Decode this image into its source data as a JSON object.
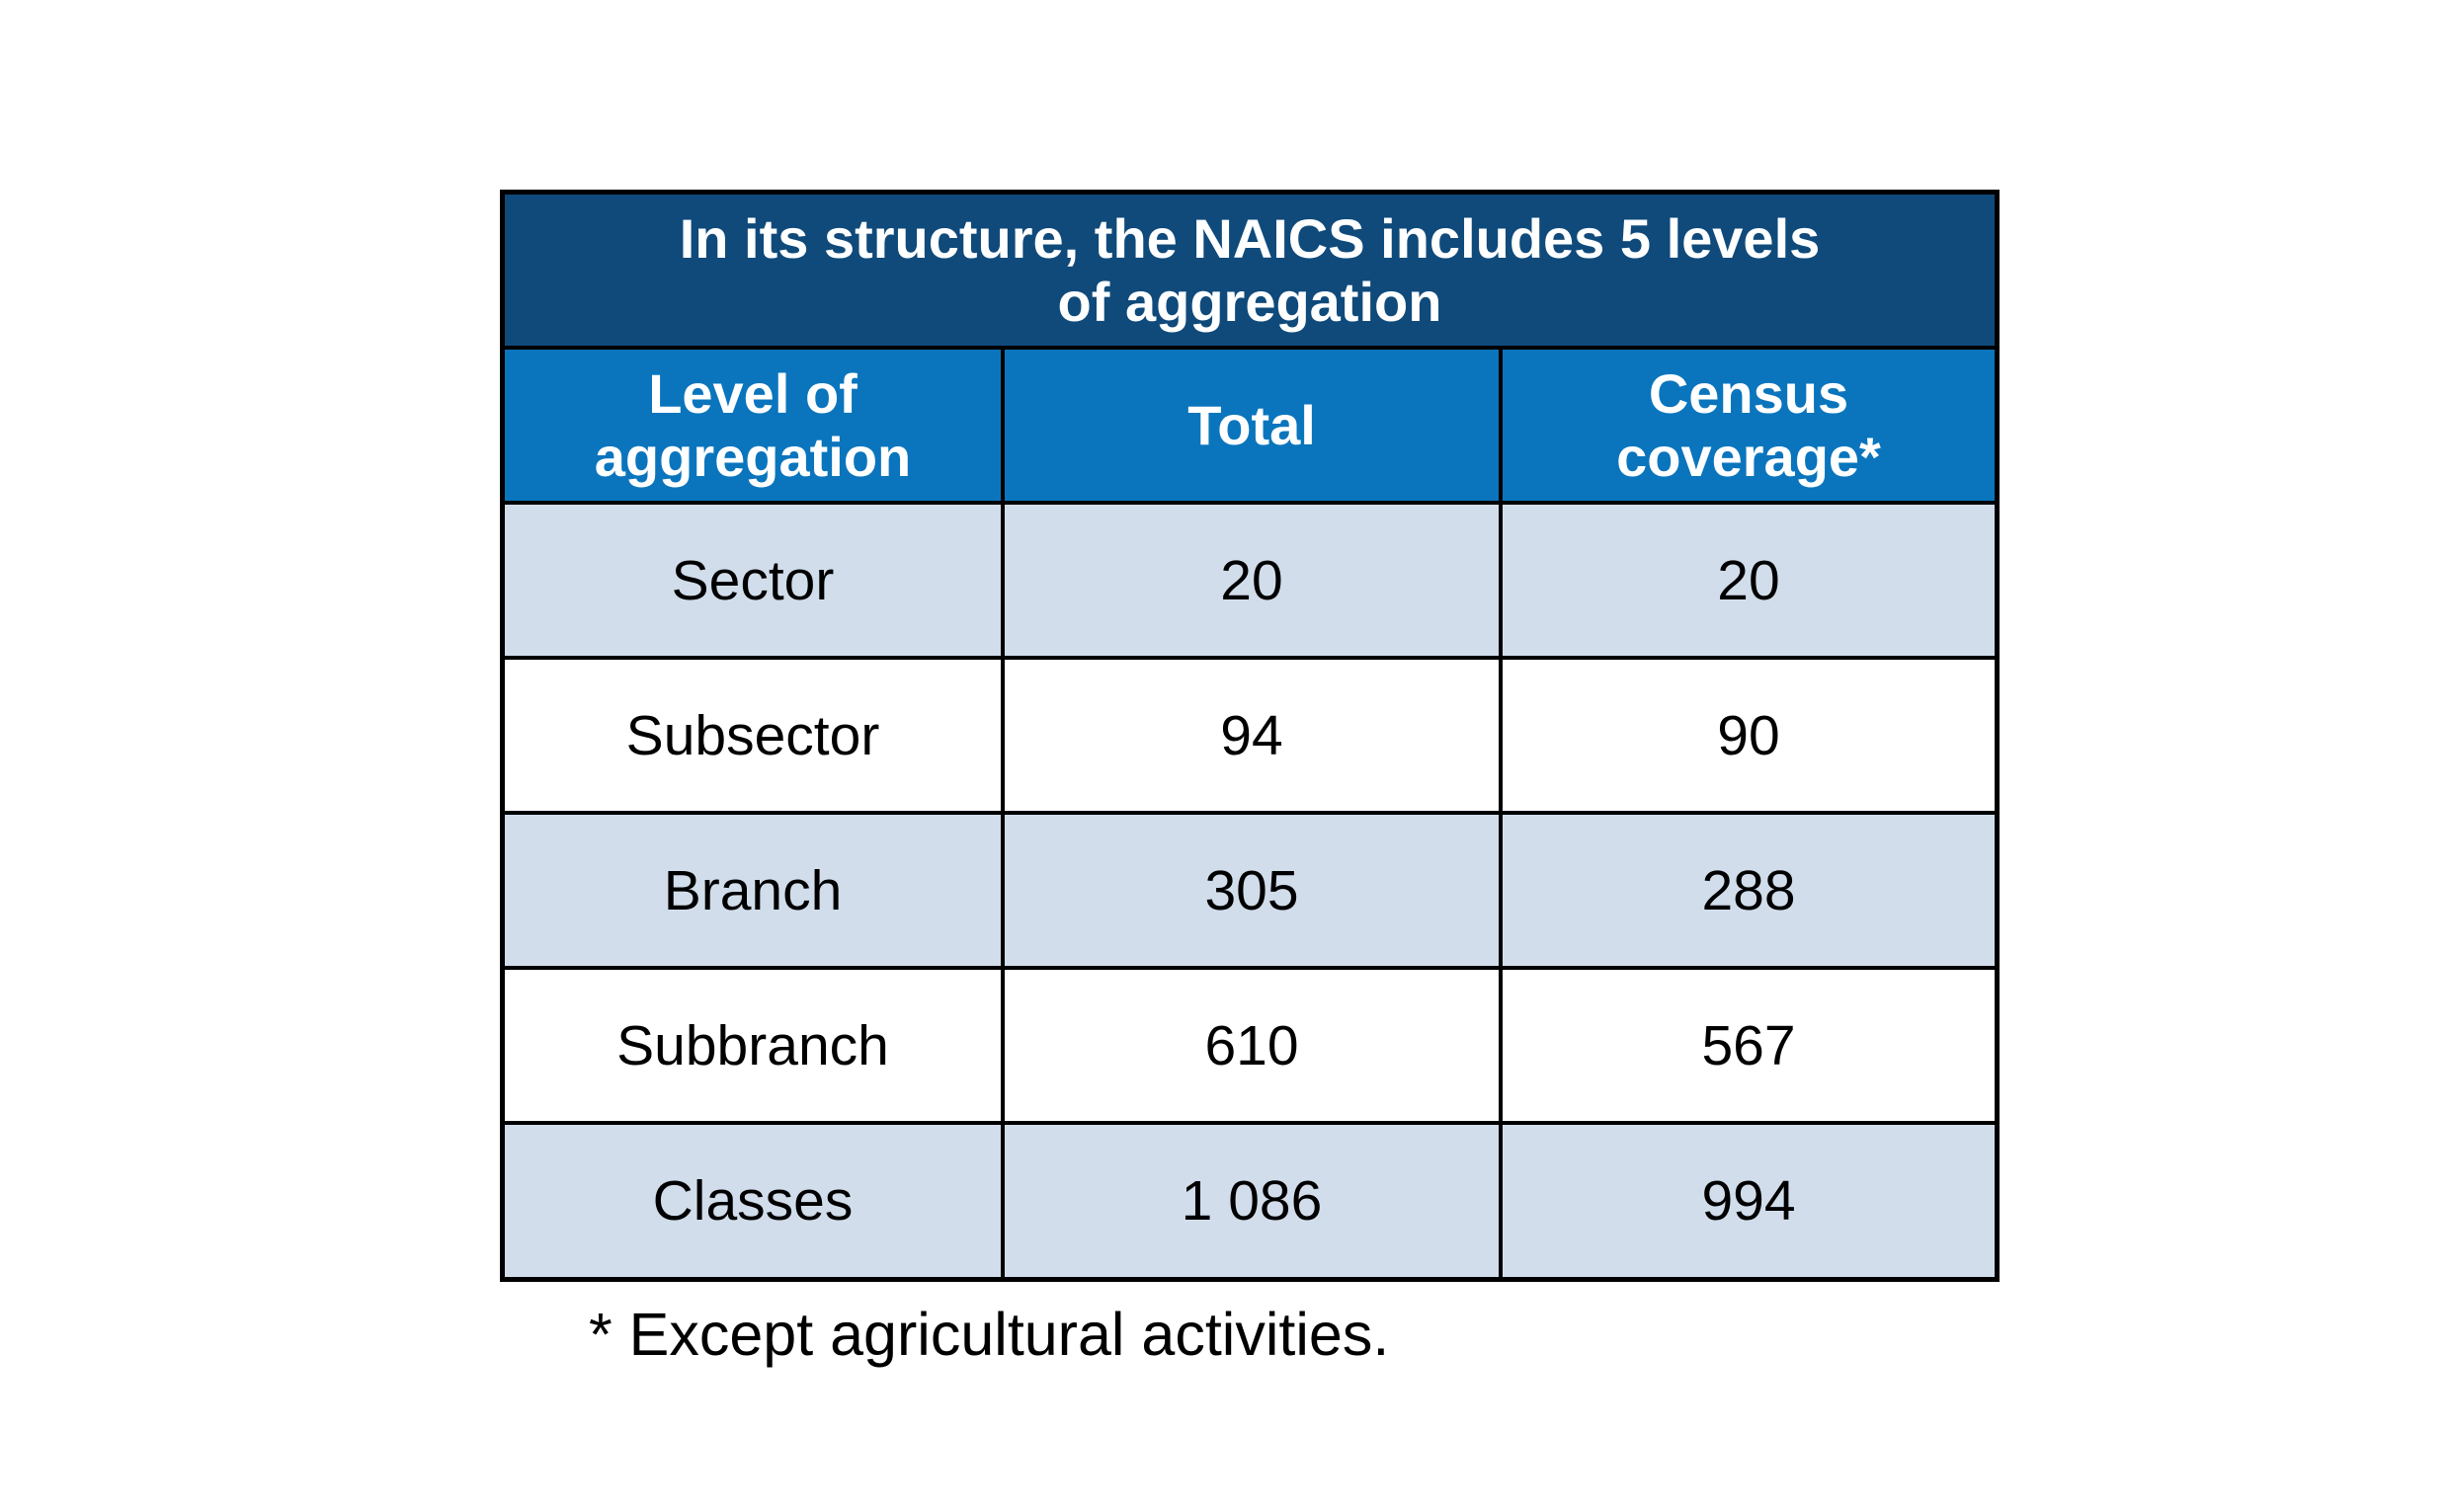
{
  "table": {
    "title_line1": "In its structure, the NAICS includes 5 levels",
    "title_line2": "of aggregation",
    "headers": {
      "level_line1": "Level of",
      "level_line2": "aggregation",
      "total": "Total",
      "census_line1": "Census",
      "census_line2": "coverage*"
    },
    "rows": [
      {
        "level": "Sector",
        "total": "20",
        "census": "20"
      },
      {
        "level": "Subsector",
        "total": "94",
        "census": "90"
      },
      {
        "level": "Branch",
        "total": "305",
        "census": "288"
      },
      {
        "level": "Subbranch",
        "total": "610",
        "census": "567"
      },
      {
        "level": "Classes",
        "total": "1 086",
        "census": "994"
      }
    ],
    "colors": {
      "title_bg": "#0F4A7B",
      "header_bg": "#0A75BD",
      "shaded_row_bg": "#D1DDEB",
      "plain_row_bg": "#FFFFFF"
    }
  },
  "footnote": "* Except agricultural activities."
}
